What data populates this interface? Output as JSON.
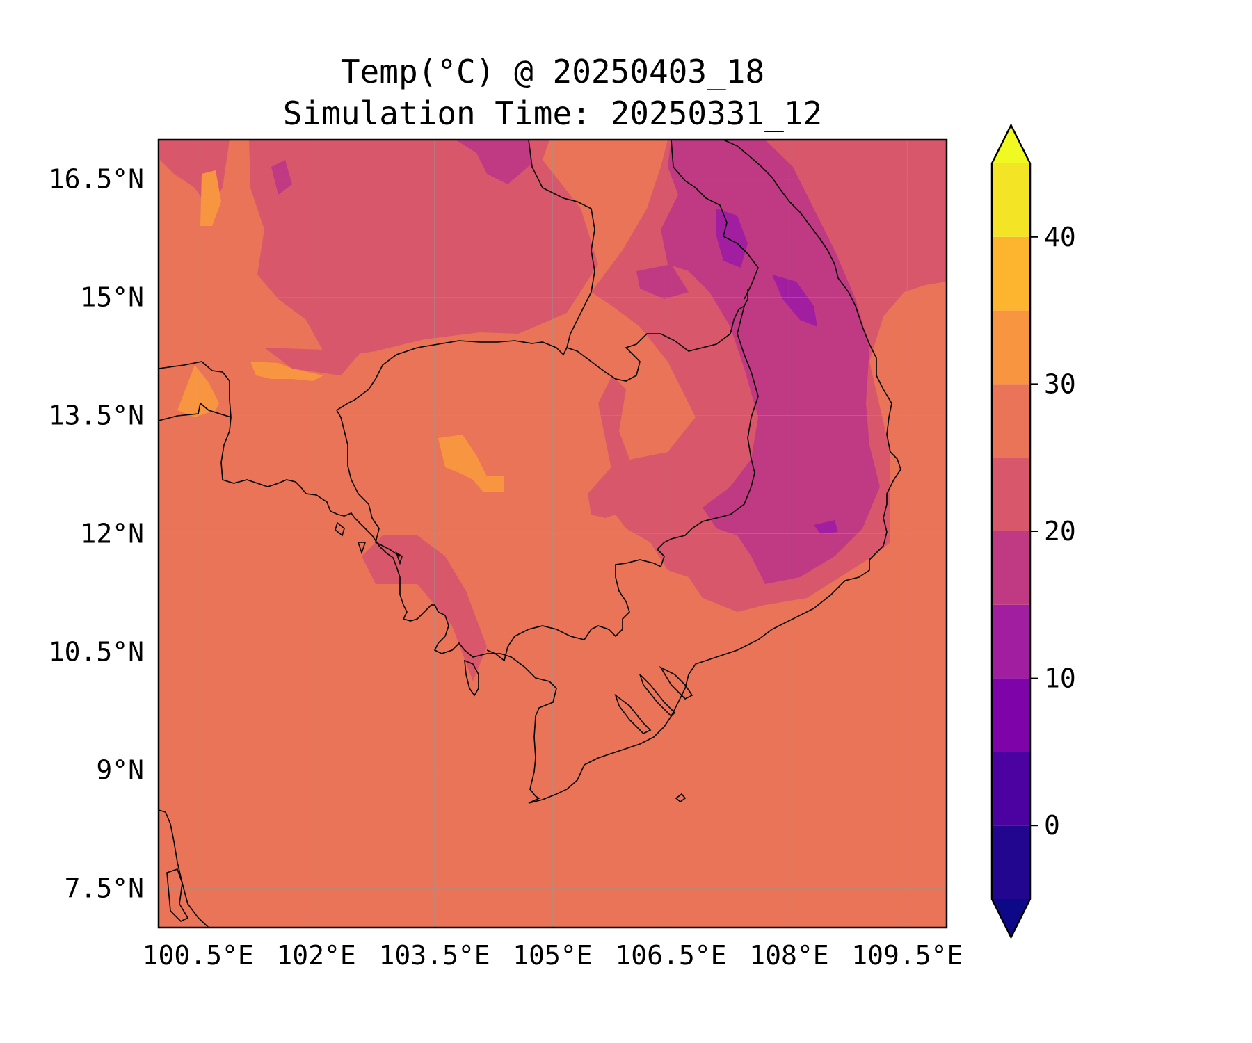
{
  "title": {
    "line1": "Temp(°C) @ 20250403_18",
    "line2": "Simulation Time: 20250331_12"
  },
  "map": {
    "lon_range": [
      100.0,
      110.0
    ],
    "lat_range": [
      7.0,
      17.0
    ],
    "lon_ticks": [
      {
        "value": 100.5,
        "label": "100.5°E"
      },
      {
        "value": 102.0,
        "label": "102°E"
      },
      {
        "value": 103.5,
        "label": "103.5°E"
      },
      {
        "value": 105.0,
        "label": "105°E"
      },
      {
        "value": 106.5,
        "label": "106.5°E"
      },
      {
        "value": 108.0,
        "label": "108°E"
      },
      {
        "value": 109.5,
        "label": "109.5°E"
      }
    ],
    "lat_ticks": [
      {
        "value": 16.5,
        "label": "16.5°N"
      },
      {
        "value": 15.0,
        "label": "15°N"
      },
      {
        "value": 13.5,
        "label": "13.5°N"
      },
      {
        "value": 12.0,
        "label": "12°N"
      },
      {
        "value": 10.5,
        "label": "10.5°N"
      },
      {
        "value": 9.0,
        "label": "9°N"
      },
      {
        "value": 7.5,
        "label": "7.5°N"
      }
    ],
    "gridlines": true,
    "background_color": "#e97458"
  },
  "colorbar": {
    "colormap": "plasma",
    "extend": "both",
    "range": [
      -5,
      45
    ],
    "bins": [
      {
        "from": -5,
        "to": 0,
        "color": "#220690"
      },
      {
        "from": 0,
        "to": 5,
        "color": "#4c02a1"
      },
      {
        "from": 5,
        "to": 10,
        "color": "#7e03a8"
      },
      {
        "from": 10,
        "to": 15,
        "color": "#a11ea1"
      },
      {
        "from": 15,
        "to": 20,
        "color": "#c03a83"
      },
      {
        "from": 20,
        "to": 25,
        "color": "#d8576b"
      },
      {
        "from": 25,
        "to": 30,
        "color": "#e97458"
      },
      {
        "from": 30,
        "to": 35,
        "color": "#f89540"
      },
      {
        "from": 35,
        "to": 40,
        "color": "#fdb42f"
      },
      {
        "from": 40,
        "to": 45,
        "color": "#f3e426"
      }
    ],
    "under_color": "#0d0887",
    "over_color": "#f0f921",
    "ticks": [
      {
        "value": 0,
        "label": "0"
      },
      {
        "value": 10,
        "label": "10"
      },
      {
        "value": 20,
        "label": "20"
      },
      {
        "value": 30,
        "label": "30"
      },
      {
        "value": 40,
        "label": "40"
      }
    ]
  }
}
